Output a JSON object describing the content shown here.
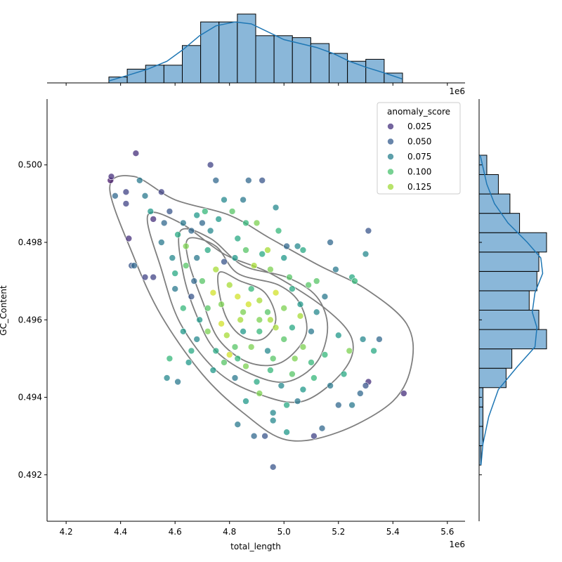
{
  "chart_data": {
    "type": "scatter",
    "xlabel": "total_length",
    "ylabel": "GC_Content",
    "x_offset_label": "1e6",
    "xlim": [
      4.13,
      5.665
    ],
    "ylim": [
      0.4908,
      0.5017
    ],
    "x_ticks": [
      4.2,
      4.4,
      4.6,
      4.8,
      5.0,
      5.2,
      5.4,
      5.6
    ],
    "x_tick_labels": [
      "4.2",
      "4.4",
      "4.6",
      "4.8",
      "5.0",
      "5.2",
      "5.4",
      "5.6"
    ],
    "y_ticks": [
      0.492,
      0.494,
      0.496,
      0.498,
      0.5
    ],
    "y_tick_labels": [
      "0.492",
      "0.494",
      "0.496",
      "0.498",
      "0.500"
    ],
    "legend": {
      "title": "anomaly_score",
      "placement": "top-right",
      "entries": [
        {
          "label": "0.025",
          "color": "#46327e"
        },
        {
          "label": "0.050",
          "color": "#365c8d"
        },
        {
          "label": "0.075",
          "color": "#277f8e"
        },
        {
          "label": "0.100",
          "color": "#4ac16d"
        },
        {
          "label": "0.125",
          "color": "#a0da39"
        }
      ]
    },
    "colormap": "viridis",
    "color_range": [
      0.0,
      0.15
    ],
    "contour_color": "#7f7f7f",
    "hist_color": "#8ab7d9",
    "hist_edge": "#000000",
    "kde_color": "#1f77b4",
    "marginal_x_hist": {
      "edges": [
        4.357,
        4.4244,
        4.4918,
        4.5592,
        4.6266,
        4.694,
        4.7614,
        4.8288,
        4.8962,
        4.9636,
        5.031,
        5.0984,
        5.1658,
        5.2332,
        5.3006,
        5.368,
        5.4354
      ],
      "counts": [
        3,
        7,
        9,
        9,
        19,
        31,
        31,
        35,
        24,
        24,
        23,
        20,
        15,
        11,
        12,
        5
      ],
      "kde": [
        [
          4.357,
          1
        ],
        [
          4.43,
          4
        ],
        [
          4.5,
          7
        ],
        [
          4.57,
          11
        ],
        [
          4.63,
          17
        ],
        [
          4.69,
          24
        ],
        [
          4.75,
          29
        ],
        [
          4.82,
          31
        ],
        [
          4.88,
          30
        ],
        [
          4.94,
          26
        ],
        [
          5.0,
          22
        ],
        [
          5.06,
          20
        ],
        [
          5.12,
          18
        ],
        [
          5.18,
          15
        ],
        [
          5.24,
          11
        ],
        [
          5.3,
          8
        ],
        [
          5.37,
          5
        ],
        [
          5.435,
          2
        ]
      ]
    },
    "marginal_y_hist": {
      "edges": [
        0.49225,
        0.49275,
        0.49325,
        0.49375,
        0.49425,
        0.49475,
        0.49525,
        0.49575,
        0.49625,
        0.49675,
        0.49725,
        0.49775,
        0.49825,
        0.49875,
        0.49925,
        0.49975,
        0.50025
      ],
      "counts": [
        0.5,
        1,
        1,
        1,
        7,
        8.5,
        17.5,
        15.5,
        13,
        15,
        15.5,
        17.5,
        10.5,
        8,
        5,
        2,
        0.5
      ],
      "kde": [
        [
          0.49225,
          0.5
        ],
        [
          0.4928,
          1
        ],
        [
          0.4935,
          2.5
        ],
        [
          0.4942,
          5
        ],
        [
          0.4948,
          10
        ],
        [
          0.4953,
          14.5
        ],
        [
          0.4958,
          15
        ],
        [
          0.4962,
          13.8
        ],
        [
          0.4967,
          14.5
        ],
        [
          0.4972,
          16.5
        ],
        [
          0.4976,
          16
        ],
        [
          0.498,
          12.5
        ],
        [
          0.4985,
          7.5
        ],
        [
          0.499,
          4
        ],
        [
          0.4995,
          2
        ],
        [
          0.50025,
          0.3
        ]
      ]
    },
    "kde_contours": [
      [
        [
          4.36,
          0.4994
        ],
        [
          4.45,
          0.4997
        ],
        [
          4.6,
          0.4991
        ],
        [
          4.8,
          0.4987
        ],
        [
          4.95,
          0.4981
        ],
        [
          5.13,
          0.4974
        ],
        [
          5.3,
          0.4968
        ],
        [
          5.45,
          0.4959
        ],
        [
          5.47,
          0.4949
        ],
        [
          5.4,
          0.4939
        ],
        [
          5.2,
          0.4931
        ],
        [
          5.01,
          0.4929
        ],
        [
          4.85,
          0.4936
        ],
        [
          4.7,
          0.4946
        ],
        [
          4.55,
          0.4961
        ],
        [
          4.45,
          0.4976
        ],
        [
          4.36,
          0.4994
        ]
      ],
      [
        [
          4.5,
          0.4987
        ],
        [
          4.62,
          0.4985
        ],
        [
          4.78,
          0.4977
        ],
        [
          4.95,
          0.4972
        ],
        [
          5.15,
          0.4963
        ],
        [
          5.25,
          0.4955
        ],
        [
          5.22,
          0.4947
        ],
        [
          5.07,
          0.4939
        ],
        [
          4.9,
          0.4941
        ],
        [
          4.75,
          0.4947
        ],
        [
          4.62,
          0.4959
        ],
        [
          4.55,
          0.4973
        ],
        [
          4.5,
          0.4987
        ]
      ],
      [
        [
          4.62,
          0.4983
        ],
        [
          4.73,
          0.4981
        ],
        [
          4.85,
          0.4974
        ],
        [
          5.01,
          0.4971
        ],
        [
          5.12,
          0.4966
        ],
        [
          5.16,
          0.4958
        ],
        [
          5.12,
          0.4949
        ],
        [
          5.01,
          0.4944
        ],
        [
          4.88,
          0.4946
        ],
        [
          4.75,
          0.4952
        ],
        [
          4.68,
          0.4961
        ],
        [
          4.63,
          0.4972
        ],
        [
          4.62,
          0.4983
        ]
      ],
      [
        [
          4.65,
          0.4981
        ],
        [
          4.75,
          0.4979
        ],
        [
          4.83,
          0.4972
        ],
        [
          4.98,
          0.4969
        ],
        [
          5.06,
          0.4964
        ],
        [
          5.08,
          0.4956
        ],
        [
          4.99,
          0.4949
        ],
        [
          4.87,
          0.4949
        ],
        [
          4.76,
          0.4955
        ],
        [
          4.7,
          0.4965
        ],
        [
          4.65,
          0.4975
        ],
        [
          4.65,
          0.4981
        ]
      ],
      [
        [
          4.76,
          0.4972
        ],
        [
          4.84,
          0.497
        ],
        [
          4.93,
          0.4967
        ],
        [
          4.97,
          0.496
        ],
        [
          4.92,
          0.4955
        ],
        [
          4.84,
          0.4956
        ],
        [
          4.78,
          0.4962
        ],
        [
          4.76,
          0.4972
        ]
      ]
    ],
    "points": [
      [
        4.363,
        0.4996,
        0.01
      ],
      [
        4.366,
        0.4997,
        0.02
      ],
      [
        4.38,
        0.4992,
        0.05
      ],
      [
        4.42,
        0.4993,
        0.03
      ],
      [
        4.456,
        0.5003,
        0.02
      ],
      [
        4.42,
        0.499,
        0.03
      ],
      [
        4.47,
        0.4996,
        0.06
      ],
      [
        4.43,
        0.4981,
        0.02
      ],
      [
        4.44,
        0.4974,
        0.04
      ],
      [
        4.45,
        0.4974,
        0.05
      ],
      [
        4.49,
        0.4992,
        0.06
      ],
      [
        4.51,
        0.4988,
        0.08
      ],
      [
        4.55,
        0.4993,
        0.03
      ],
      [
        4.58,
        0.4988,
        0.04
      ],
      [
        4.52,
        0.4986,
        0.02
      ],
      [
        4.56,
        0.4985,
        0.05
      ],
      [
        4.59,
        0.4976,
        0.07
      ],
      [
        4.55,
        0.498,
        0.06
      ],
      [
        4.52,
        0.4971,
        0.03
      ],
      [
        4.61,
        0.4982,
        0.09
      ],
      [
        4.63,
        0.4985,
        0.06
      ],
      [
        4.66,
        0.4983,
        0.05
      ],
      [
        4.68,
        0.4987,
        0.08
      ],
      [
        4.71,
        0.4988,
        0.1
      ],
      [
        4.73,
        0.5,
        0.03
      ],
      [
        4.75,
        0.4996,
        0.05
      ],
      [
        4.78,
        0.4991,
        0.07
      ],
      [
        4.81,
        0.4988,
        0.11
      ],
      [
        4.85,
        0.4991,
        0.06
      ],
      [
        4.87,
        0.4996,
        0.05
      ],
      [
        4.92,
        0.4996,
        0.04
      ],
      [
        4.97,
        0.4989,
        0.07
      ],
      [
        4.86,
        0.4985,
        0.1
      ],
      [
        4.64,
        0.4979,
        0.12
      ],
      [
        4.68,
        0.4976,
        0.06
      ],
      [
        4.72,
        0.4978,
        0.09
      ],
      [
        4.75,
        0.4973,
        0.13
      ],
      [
        4.78,
        0.4975,
        0.04
      ],
      [
        4.82,
        0.4976,
        0.08
      ],
      [
        4.86,
        0.4978,
        0.11
      ],
      [
        4.89,
        0.4974,
        0.13
      ],
      [
        4.92,
        0.4977,
        0.09
      ],
      [
        4.95,
        0.4973,
        0.12
      ],
      [
        5.0,
        0.4976,
        0.08
      ],
      [
        5.05,
        0.4979,
        0.07
      ],
      [
        4.6,
        0.4968,
        0.06
      ],
      [
        4.63,
        0.4963,
        0.1
      ],
      [
        4.66,
        0.4966,
        0.04
      ],
      [
        4.69,
        0.496,
        0.08
      ],
      [
        4.72,
        0.4963,
        0.11
      ],
      [
        4.74,
        0.4967,
        0.14
      ],
      [
        4.77,
        0.4964,
        0.12
      ],
      [
        4.8,
        0.4969,
        0.13
      ],
      [
        4.83,
        0.4966,
        0.14
      ],
      [
        4.85,
        0.4962,
        0.12
      ],
      [
        4.88,
        0.4968,
        0.1
      ],
      [
        4.91,
        0.4965,
        0.13
      ],
      [
        4.94,
        0.4962,
        0.11
      ],
      [
        4.97,
        0.4967,
        0.14
      ],
      [
        5.0,
        0.4963,
        0.12
      ],
      [
        5.03,
        0.4968,
        0.09
      ],
      [
        5.06,
        0.4964,
        0.08
      ],
      [
        5.09,
        0.4969,
        0.11
      ],
      [
        5.12,
        0.4962,
        0.07
      ],
      [
        5.15,
        0.4966,
        0.06
      ],
      [
        4.68,
        0.4955,
        0.07
      ],
      [
        4.72,
        0.4957,
        0.12
      ],
      [
        4.75,
        0.4952,
        0.09
      ],
      [
        4.79,
        0.4956,
        0.13
      ],
      [
        4.82,
        0.4953,
        0.11
      ],
      [
        4.85,
        0.4957,
        0.08
      ],
      [
        4.88,
        0.4953,
        0.12
      ],
      [
        4.91,
        0.4957,
        0.1
      ],
      [
        4.94,
        0.4952,
        0.07
      ],
      [
        4.97,
        0.4958,
        0.13
      ],
      [
        5.0,
        0.4955,
        0.11
      ],
      [
        5.03,
        0.4958,
        0.09
      ],
      [
        5.07,
        0.4953,
        0.12
      ],
      [
        5.1,
        0.4957,
        0.06
      ],
      [
        5.15,
        0.4951,
        0.1
      ],
      [
        5.2,
        0.4956,
        0.08
      ],
      [
        5.24,
        0.4952,
        0.12
      ],
      [
        5.29,
        0.4955,
        0.07
      ],
      [
        5.33,
        0.4952,
        0.09
      ],
      [
        5.35,
        0.4955,
        0.05
      ],
      [
        4.74,
        0.4947,
        0.08
      ],
      [
        4.78,
        0.4949,
        0.11
      ],
      [
        4.82,
        0.4945,
        0.06
      ],
      [
        4.86,
        0.4948,
        0.12
      ],
      [
        4.9,
        0.4944,
        0.09
      ],
      [
        4.95,
        0.4947,
        0.1
      ],
      [
        4.99,
        0.4943,
        0.07
      ],
      [
        5.03,
        0.4946,
        0.11
      ],
      [
        5.07,
        0.4942,
        0.08
      ],
      [
        5.11,
        0.4945,
        0.1
      ],
      [
        5.17,
        0.4943,
        0.06
      ],
      [
        5.22,
        0.4946,
        0.09
      ],
      [
        5.28,
        0.4941,
        0.05
      ],
      [
        5.31,
        0.4944,
        0.02
      ],
      [
        5.3,
        0.4943,
        0.04
      ],
      [
        4.57,
        0.4945,
        0.07
      ],
      [
        4.61,
        0.4944,
        0.06
      ],
      [
        4.58,
        0.495,
        0.1
      ],
      [
        4.65,
        0.4949,
        0.08
      ],
      [
        4.49,
        0.4971,
        0.03
      ],
      [
        4.86,
        0.4939,
        0.08
      ],
      [
        4.91,
        0.4941,
        0.12
      ],
      [
        4.96,
        0.4936,
        0.07
      ],
      [
        5.01,
        0.4938,
        0.09
      ],
      [
        5.05,
        0.4939,
        0.06
      ],
      [
        4.89,
        0.493,
        0.05
      ],
      [
        4.83,
        0.4933,
        0.06
      ],
      [
        4.96,
        0.4934,
        0.07
      ],
      [
        4.93,
        0.493,
        0.04
      ],
      [
        5.01,
        0.4931,
        0.08
      ],
      [
        5.11,
        0.493,
        0.03
      ],
      [
        5.14,
        0.4932,
        0.05
      ],
      [
        5.2,
        0.4938,
        0.05
      ],
      [
        5.25,
        0.4938,
        0.06
      ],
      [
        4.96,
        0.4922,
        0.04
      ],
      [
        5.44,
        0.4941,
        0.02
      ],
      [
        5.31,
        0.4983,
        0.04
      ],
      [
        5.3,
        0.4977,
        0.07
      ],
      [
        5.25,
        0.4971,
        0.09
      ],
      [
        5.26,
        0.497,
        0.1
      ],
      [
        5.19,
        0.4973,
        0.06
      ],
      [
        5.17,
        0.498,
        0.05
      ],
      [
        5.12,
        0.497,
        0.11
      ],
      [
        5.07,
        0.4978,
        0.09
      ],
      [
        5.01,
        0.4979,
        0.05
      ],
      [
        4.8,
        0.4951,
        0.14
      ],
      [
        4.84,
        0.496,
        0.13
      ],
      [
        4.87,
        0.4964,
        0.14
      ],
      [
        4.91,
        0.496,
        0.12
      ],
      [
        4.95,
        0.496,
        0.13
      ],
      [
        4.77,
        0.4959,
        0.14
      ],
      [
        4.83,
        0.495,
        0.1
      ],
      [
        4.96,
        0.495,
        0.11
      ],
      [
        5.04,
        0.495,
        0.12
      ],
      [
        5.1,
        0.4949,
        0.1
      ],
      [
        4.7,
        0.497,
        0.11
      ],
      [
        4.73,
        0.4983,
        0.07
      ],
      [
        4.7,
        0.4985,
        0.05
      ],
      [
        4.76,
        0.4986,
        0.08
      ],
      [
        4.83,
        0.4981,
        0.09
      ],
      [
        4.6,
        0.4972,
        0.09
      ],
      [
        4.64,
        0.4974,
        0.11
      ],
      [
        4.67,
        0.497,
        0.05
      ],
      [
        4.63,
        0.4957,
        0.08
      ],
      [
        4.66,
        0.4952,
        0.09
      ],
      [
        4.9,
        0.4985,
        0.12
      ],
      [
        4.98,
        0.4983,
        0.1
      ],
      [
        4.94,
        0.4978,
        0.13
      ],
      [
        5.02,
        0.4971,
        0.11
      ],
      [
        5.06,
        0.4961,
        0.13
      ]
    ]
  }
}
